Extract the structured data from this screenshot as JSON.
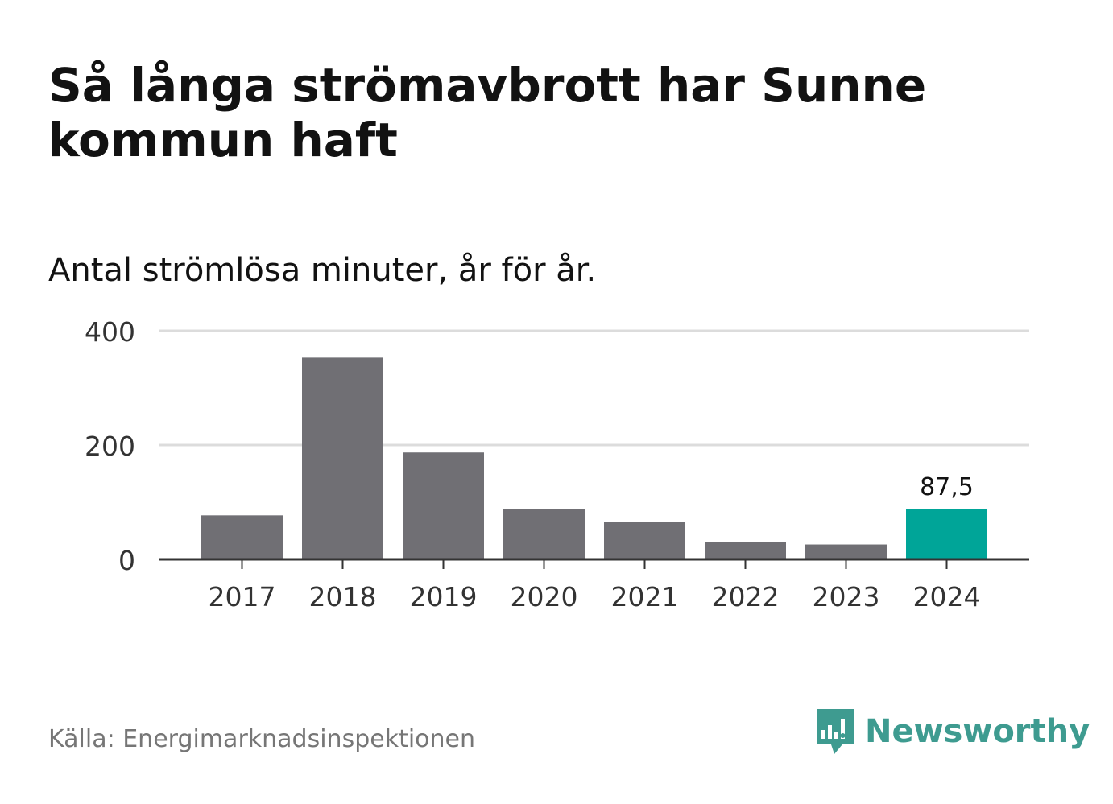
{
  "title": "Så långa strömavbrott har Sunne kommun haft",
  "subtitle": "Antal strömlösa minuter, år för år.",
  "source": "Källa: Energimarknadsinspektionen",
  "brand": {
    "name": "Newsworthy",
    "icon": "bar-chart-speech-bubble-icon",
    "color": "#3e9b90"
  },
  "colors": {
    "bar": "#706f74",
    "highlight": "#00a598",
    "grid": "#dcdcdc",
    "axis": "#333333"
  },
  "chart_data": {
    "type": "bar",
    "categories": [
      "2017",
      "2018",
      "2019",
      "2020",
      "2021",
      "2022",
      "2023",
      "2024"
    ],
    "values": [
      77,
      353,
      187,
      88,
      65,
      30,
      26,
      87.5
    ],
    "highlight_index": 7,
    "data_labels": [
      {
        "index": 7,
        "text": "87,5"
      }
    ],
    "yticks": [
      "0",
      "200",
      "400"
    ],
    "ylim": [
      0,
      400
    ],
    "grid": true,
    "legend": "none"
  }
}
